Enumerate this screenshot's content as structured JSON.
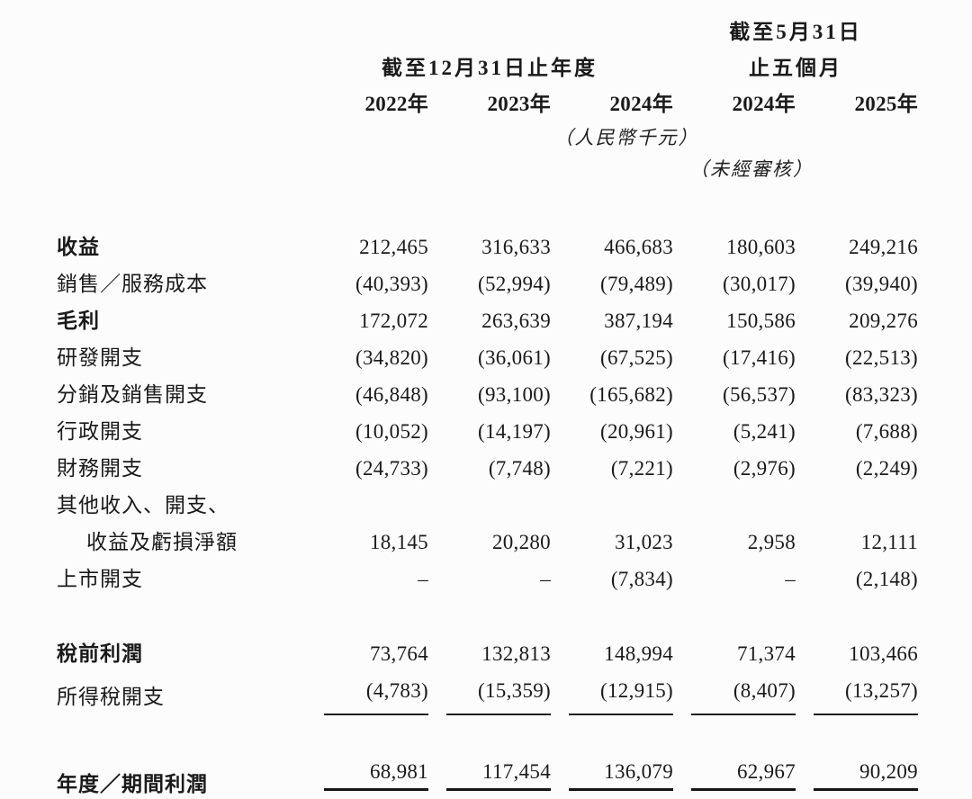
{
  "page": {
    "background": "#fcfcfc",
    "text_color": "#1a1a1a"
  },
  "table": {
    "header": {
      "interim_period_line1": "截至5月31日",
      "annual_period": "截至12月31日止年度",
      "interim_period_line2": "止五個月",
      "years": [
        "2022年",
        "2023年",
        "2024年",
        "2024年",
        "2025年"
      ],
      "currency_note": "（人民幣千元）",
      "audit_note": "（未經審核）"
    },
    "rows": [
      {
        "label": "收益",
        "bold": true,
        "values": [
          "212,465",
          "316,633",
          "466,683",
          "180,603",
          "249,216"
        ]
      },
      {
        "label": "銷售／服務成本",
        "bold": false,
        "values": [
          "(40,393)",
          "(52,994)",
          "(79,489)",
          "(30,017)",
          "(39,940)"
        ]
      },
      {
        "label": "毛利",
        "bold": true,
        "values": [
          "172,072",
          "263,639",
          "387,194",
          "150,586",
          "209,276"
        ]
      },
      {
        "label": "研發開支",
        "bold": false,
        "values": [
          "(34,820)",
          "(36,061)",
          "(67,525)",
          "(17,416)",
          "(22,513)"
        ]
      },
      {
        "label": "分銷及銷售開支",
        "bold": false,
        "values": [
          "(46,848)",
          "(93,100)",
          "(165,682)",
          "(56,537)",
          "(83,323)"
        ]
      },
      {
        "label": "行政開支",
        "bold": false,
        "values": [
          "(10,052)",
          "(14,197)",
          "(20,961)",
          "(5,241)",
          "(7,688)"
        ]
      },
      {
        "label": "財務開支",
        "bold": false,
        "values": [
          "(24,733)",
          "(7,748)",
          "(7,221)",
          "(2,976)",
          "(2,249)"
        ]
      },
      {
        "label": "其他收入、開支、",
        "label2": "收益及虧損淨額",
        "bold": false,
        "values": [
          "18,145",
          "20,280",
          "31,023",
          "2,958",
          "12,111"
        ]
      },
      {
        "label": "上市開支",
        "bold": false,
        "values": [
          "–",
          "–",
          "(7,834)",
          "–",
          "(2,148)"
        ]
      },
      {
        "label": "稅前利潤",
        "bold": true,
        "spacer": true,
        "values": [
          "73,764",
          "132,813",
          "148,994",
          "71,374",
          "103,466"
        ]
      },
      {
        "label": "所得稅開支",
        "bold": false,
        "underline": "single",
        "values": [
          "(4,783)",
          "(15,359)",
          "(12,915)",
          "(8,407)",
          "(13,257)"
        ]
      },
      {
        "label": "年度／期間利潤",
        "bold": true,
        "spacer": true,
        "underline": "double",
        "values": [
          "68,981",
          "117,454",
          "136,079",
          "62,967",
          "90,209"
        ]
      }
    ]
  }
}
